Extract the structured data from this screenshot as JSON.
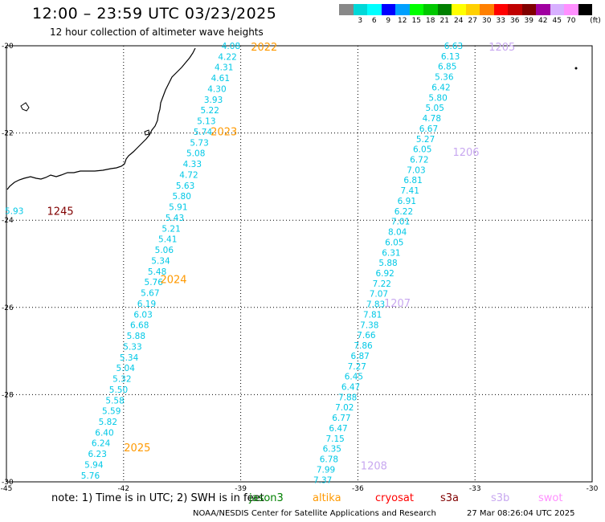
{
  "header": {
    "title": "12:00 – 23:59 UTC 03/23/2025",
    "subtitle": "12 hour collection of altimeter wave heights"
  },
  "colorbar": {
    "unit": "(ft)",
    "bins": [
      {
        "label": "",
        "color": "#888888"
      },
      {
        "label": "3",
        "color": "#00d8d8"
      },
      {
        "label": "6",
        "color": "#00ffff"
      },
      {
        "label": "9",
        "color": "#0000ff"
      },
      {
        "label": "12",
        "color": "#00a0ff"
      },
      {
        "label": "15",
        "color": "#00ff00"
      },
      {
        "label": "18",
        "color": "#00c800"
      },
      {
        "label": "21",
        "color": "#008000"
      },
      {
        "label": "24",
        "color": "#ffff00"
      },
      {
        "label": "27",
        "color": "#ffd000"
      },
      {
        "label": "30",
        "color": "#ff8000"
      },
      {
        "label": "33",
        "color": "#ff0000"
      },
      {
        "label": "36",
        "color": "#c00000"
      },
      {
        "label": "39",
        "color": "#800000"
      },
      {
        "label": "42",
        "color": "#a000a0"
      },
      {
        "label": "45",
        "color": "#d8b0ff"
      },
      {
        "label": "70",
        "color": "#ff90ff"
      },
      {
        "label": "",
        "color": "#000000"
      }
    ]
  },
  "map_data": {
    "lon_range": [
      -45,
      -30
    ],
    "lat_range": [
      -30,
      -20
    ],
    "x_ticks": [
      {
        "lon": -45,
        "label": "-45"
      },
      {
        "lon": -42,
        "label": "-42"
      },
      {
        "lon": -39,
        "label": "-39"
      },
      {
        "lon": -36,
        "label": "-36"
      },
      {
        "lon": -33,
        "label": "-33"
      },
      {
        "lon": -30,
        "label": "-30"
      }
    ],
    "y_ticks": [
      {
        "lat": -20,
        "label": "-20"
      },
      {
        "lat": -22,
        "label": "-22"
      },
      {
        "lat": -24,
        "label": "-24"
      },
      {
        "lat": -26,
        "label": "-26"
      },
      {
        "lat": -28,
        "label": "-28"
      },
      {
        "lat": -30,
        "label": "-30"
      }
    ],
    "value_color": "#00c8e6",
    "tracks": [
      {
        "name": "track-1",
        "start": [
          -39.25,
          -20.0
        ],
        "end": [
          -42.85,
          -29.85
        ],
        "values": [
          "4.08",
          "4.22",
          "4.31",
          "4.61",
          "4.30",
          "3.93",
          "5.22",
          "5.13",
          "5.74",
          "5.73",
          "5.08",
          "4.33",
          "4.72",
          "5.63",
          "5.80",
          "5.91",
          "5.43",
          "5.21",
          "5.41",
          "5.06",
          "5.34",
          "5.48",
          "5.76",
          "5.67",
          "6.19",
          "6.03",
          "6.68",
          "5.88",
          "5.33",
          "5.34",
          "5.04",
          "5.32",
          "5.50",
          "5.58",
          "5.59",
          "5.82",
          "6.40",
          "6.24",
          "6.23",
          "5.94",
          "5.76"
        ],
        "times": [
          {
            "label": "2022",
            "lon": -38.74,
            "lat": -20.02,
            "color": "#ff9900"
          },
          {
            "label": "2023",
            "lon": -39.77,
            "lat": -21.96,
            "color": "#ff9900"
          },
          {
            "label": "2024",
            "lon": -41.06,
            "lat": -25.35,
            "color": "#ff9900"
          },
          {
            "label": "2025",
            "lon": -41.99,
            "lat": -29.21,
            "color": "#ff9900"
          }
        ]
      },
      {
        "name": "track-2",
        "start": [
          -33.55,
          -20.0
        ],
        "end": [
          -36.9,
          -29.95
        ],
        "values": [
          "6.63",
          "6.13",
          "6.85",
          "5.36",
          "6.42",
          "5.80",
          "5.05",
          "4.78",
          "6.67",
          "5.27",
          "6.05",
          "6.72",
          "7.03",
          "6.81",
          "7.41",
          "6.91",
          "6.22",
          "7.01",
          "8.04",
          "6.05",
          "6.31",
          "5.88",
          "6.92",
          "7.22",
          "7.07",
          "7.83",
          "7.81",
          "7.38",
          "7.66",
          "7.86",
          "6.87",
          "7.27",
          "6.45",
          "6.47",
          "7.88",
          "7.02",
          "6.77",
          "6.47",
          "7.15",
          "6.35",
          "6.78",
          "7.99",
          "7.37"
        ],
        "times": [
          {
            "label": "1205",
            "lon": -32.65,
            "lat": -20.02,
            "color": "#c8a8f0"
          },
          {
            "label": "1206",
            "lon": -33.57,
            "lat": -22.43,
            "color": "#c8a8f0"
          },
          {
            "label": "1207",
            "lon": -35.33,
            "lat": -25.89,
            "color": "#c8a8f0"
          },
          {
            "label": "1208",
            "lon": -35.93,
            "lat": -29.62,
            "color": "#c8a8f0"
          }
        ]
      },
      {
        "name": "track-3",
        "start": [
          -44.8,
          -23.78
        ],
        "end": [
          -44.8,
          -23.78
        ],
        "values": [
          "5.93"
        ],
        "times": [
          {
            "label": "1245",
            "lon": -43.96,
            "lat": -23.78,
            "color": "#800000"
          }
        ]
      }
    ]
  },
  "footer": {
    "note": "note:  1) Time is in UTC;  2) SWH is in feet",
    "missions": [
      {
        "name": "jason3",
        "color": "#008000"
      },
      {
        "name": "altika",
        "color": "#ff9900"
      },
      {
        "name": "cryosat",
        "color": "#ff0000"
      },
      {
        "name": "s3a",
        "color": "#800000"
      },
      {
        "name": "s3b",
        "color": "#c8a8f0"
      },
      {
        "name": "swot",
        "color": "#ff90ff"
      }
    ],
    "credit": "NOAA/NESDIS Center for Satellite Applications and Research",
    "timestamp": "27 Mar 08:26:04 UTC 2025"
  }
}
